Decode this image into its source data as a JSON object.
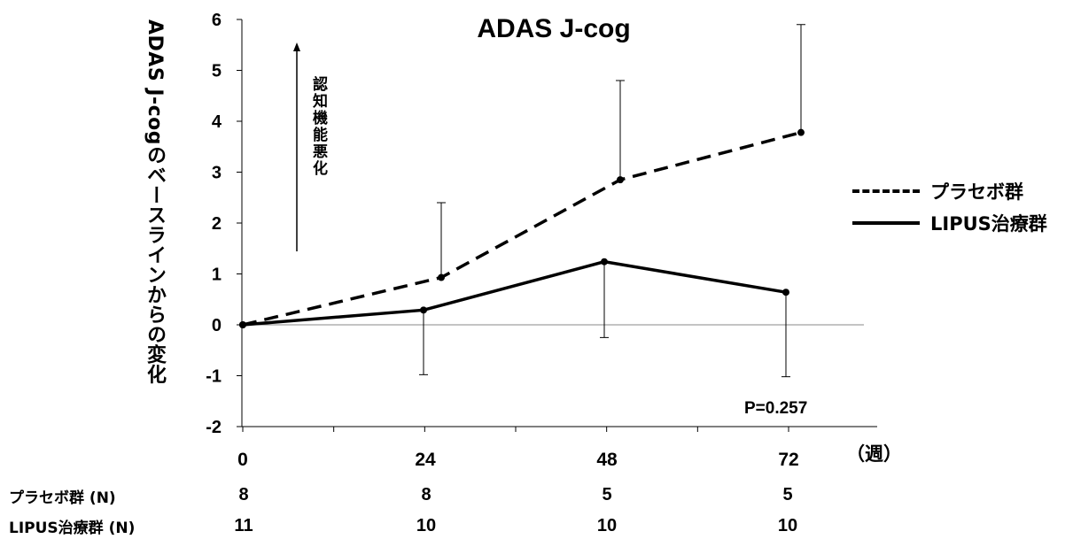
{
  "chart_data": {
    "type": "line",
    "title": "ADAS J-cog",
    "ylabel": "ADAS J-cogのベースラインからの変化",
    "xlabel": "（週）",
    "x": [
      0,
      24,
      48,
      72
    ],
    "xticks": [
      "0",
      "24",
      "48",
      "72"
    ],
    "ylim": [
      -2,
      6
    ],
    "yticks": [
      6,
      5,
      4,
      3,
      2,
      1,
      0,
      -1,
      -2
    ],
    "series": [
      {
        "name": "プラセボ群",
        "style": "dashed",
        "values": [
          0,
          0.93,
          2.85,
          3.78
        ],
        "error_upper": [
          0,
          2.4,
          4.8,
          5.9
        ]
      },
      {
        "name": "LIPUS治療群",
        "style": "solid",
        "values": [
          0,
          0.29,
          1.24,
          0.64
        ],
        "error_lower": [
          0,
          -0.98,
          -0.25,
          -1.02
        ]
      }
    ],
    "annotation": "認知機能悪化",
    "p_value": "P=0.257",
    "legend_position": "right",
    "n_table": {
      "rows": [
        {
          "label": "プラセボ群 (N)",
          "values": [
            "8",
            "8",
            "5",
            "5"
          ]
        },
        {
          "label": "LIPUS治療群 (N)",
          "values": [
            "11",
            "10",
            "10",
            "10"
          ]
        }
      ]
    }
  }
}
